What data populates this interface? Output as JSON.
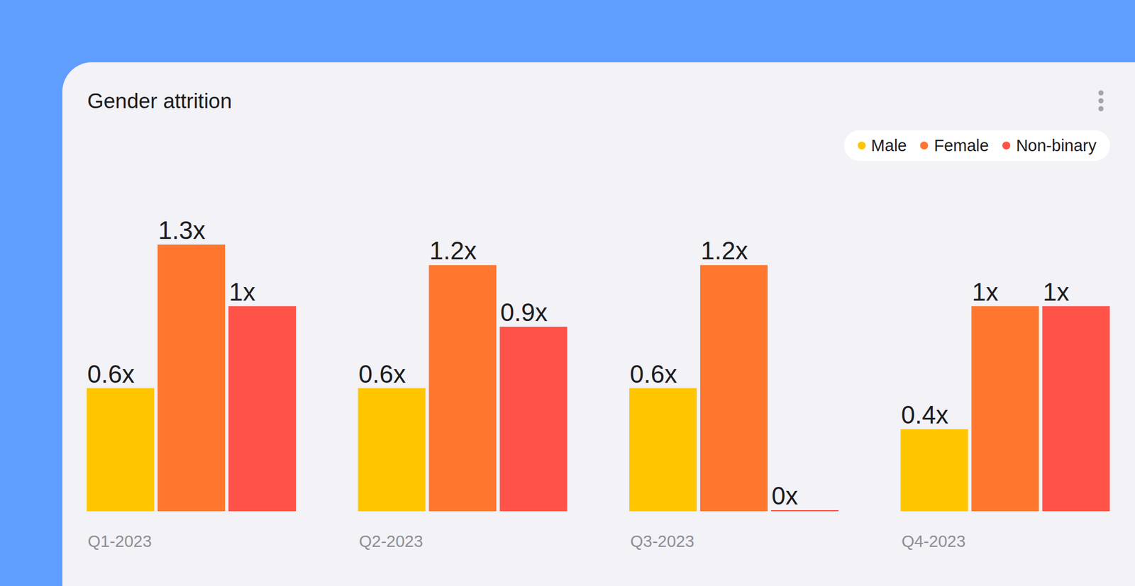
{
  "chart_data": {
    "type": "bar",
    "title": "Gender attrition",
    "categories": [
      "Q1-2023",
      "Q2-2023",
      "Q3-2023",
      "Q4-2023"
    ],
    "series": [
      {
        "name": "Male",
        "color": "#ffc600",
        "values": [
          0.6,
          0.6,
          0.6,
          0.4
        ],
        "value_labels": [
          "0.6x",
          "0.6x",
          "0.6x",
          "0.4x"
        ]
      },
      {
        "name": "Female",
        "color": "#ff772e",
        "values": [
          1.3,
          1.2,
          1.2,
          1
        ],
        "value_labels": [
          "1.3x",
          "1.2x",
          "1.2x",
          "1x"
        ]
      },
      {
        "name": "Non-binary",
        "color": "#ff5349",
        "values": [
          1,
          0.9,
          0,
          1
        ],
        "value_labels": [
          "1x",
          "0.9x",
          "0x",
          "1x"
        ]
      }
    ],
    "ylim": [
      0,
      1.3
    ],
    "yticks": [
      0,
      1.3
    ],
    "grid": false,
    "legend": "top-right",
    "data_labels": true,
    "tick_labels": "x"
  }
}
